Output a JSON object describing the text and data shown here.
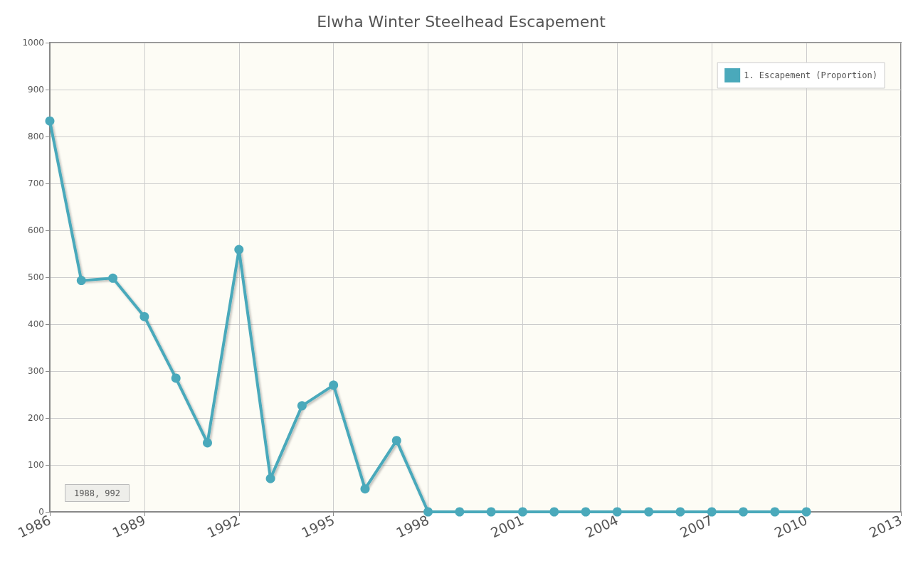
{
  "chart_data": {
    "type": "line",
    "title": "Elwha Winter Steelhead Escapement",
    "x": [
      1986,
      1987,
      1988,
      1989,
      1990,
      1991,
      1992,
      1993,
      1994,
      1995,
      1996,
      1997,
      1998,
      1999,
      2000,
      2001,
      2002,
      2003,
      2004,
      2005,
      2006,
      2007,
      2008,
      2009,
      2010
    ],
    "series": [
      {
        "name": "1. Escapement (Proportion)",
        "color": "#4aa9bb",
        "values": [
          833,
          493,
          498,
          416,
          285,
          147,
          559,
          71,
          226,
          270,
          49,
          152,
          0,
          0,
          0,
          0,
          0,
          0,
          0,
          0,
          0,
          0,
          0,
          0,
          0
        ]
      }
    ],
    "xlim": [
      1986,
      2013
    ],
    "xticks": [
      1986,
      1989,
      1992,
      1995,
      1998,
      2001,
      2004,
      2007,
      2010,
      2013
    ],
    "ylim": [
      0,
      1000
    ],
    "yticks": [
      0,
      100,
      200,
      300,
      400,
      500,
      600,
      700,
      800,
      900,
      1000
    ],
    "grid": true,
    "legend": "top right",
    "marker": "circle",
    "line_style": "solid",
    "annotations": [
      "1988, 992"
    ]
  }
}
